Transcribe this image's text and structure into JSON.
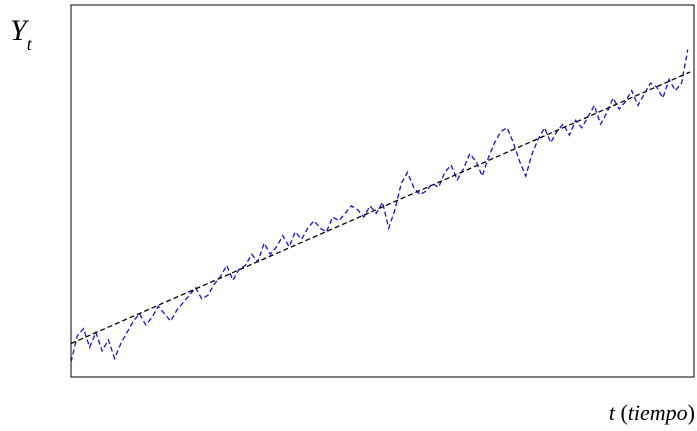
{
  "chart_data": {
    "type": "line",
    "y_label": {
      "main": "Y",
      "sub": "t"
    },
    "x_label": {
      "var": "t",
      "open": "(",
      "word": "tiempo",
      "close": ")"
    },
    "xlim": [
      0,
      100
    ],
    "ylim": [
      0,
      100
    ],
    "series": [
      {
        "color": "#1010e0",
        "dashed": true,
        "x": [
          0,
          1,
          2,
          3,
          4,
          5,
          6,
          7,
          8,
          9,
          10,
          11,
          12,
          13,
          14,
          15,
          16,
          17,
          18,
          19,
          20,
          21,
          22,
          23,
          24,
          25,
          26,
          27,
          28,
          29,
          30,
          31,
          32,
          33,
          34,
          35,
          36,
          37,
          38,
          39,
          40,
          41,
          42,
          43,
          44,
          45,
          46,
          47,
          48,
          49,
          50,
          51,
          52,
          53,
          54,
          55,
          56,
          57,
          58,
          59,
          60,
          61,
          62,
          63,
          64,
          65,
          66,
          67,
          68,
          69,
          70,
          71,
          72,
          73,
          74,
          75,
          76,
          77,
          78,
          79,
          80,
          81,
          82,
          83,
          84,
          85,
          86,
          87,
          88,
          89,
          90,
          91,
          92,
          93,
          94,
          95,
          96,
          97,
          98,
          99
        ],
        "values": [
          4,
          11,
          13,
          8,
          12,
          7,
          10,
          5,
          9,
          12,
          15,
          17,
          14,
          16,
          19,
          17,
          15,
          18,
          20,
          22,
          24,
          21,
          22,
          25,
          27,
          30,
          26,
          29,
          30,
          33,
          31,
          36,
          33,
          35,
          38,
          35,
          39,
          37,
          40,
          42,
          40,
          39,
          43,
          42,
          44,
          46,
          45,
          43,
          46,
          44,
          47,
          40,
          45,
          52,
          55,
          51,
          49,
          50,
          52,
          51,
          55,
          57,
          53,
          56,
          60,
          58,
          54,
          59,
          63,
          66,
          67,
          63,
          58,
          54,
          60,
          64,
          67,
          63,
          66,
          68,
          65,
          69,
          67,
          70,
          73,
          68,
          71,
          75,
          72,
          74,
          77,
          73,
          76,
          79,
          78,
          75,
          80,
          77,
          79,
          88
        ]
      },
      {
        "color": "#000000",
        "dashed": true,
        "x": [
          0,
          99.4
        ],
        "values": [
          9,
          82
        ]
      }
    ]
  }
}
